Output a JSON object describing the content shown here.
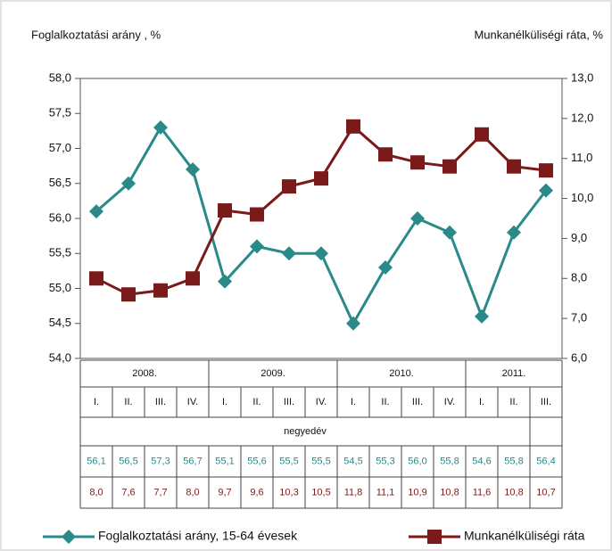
{
  "chart_data": {
    "type": "line",
    "y_title": "Foglalkoztatási arány , %",
    "y2_title": "Munkanélküliségi ráta, %",
    "categories": [
      "I.",
      "II.",
      "III.",
      "IV.",
      "I.",
      "II.",
      "III.",
      "IV.",
      "I.",
      "II.",
      "III.",
      "IV.",
      "I.",
      "II.",
      "III."
    ],
    "groups": [
      {
        "label": "2008.",
        "span": 4
      },
      {
        "label": "2009.",
        "span": 4
      },
      {
        "label": "2010.",
        "span": 4
      },
      {
        "label": "2011.",
        "span": 3
      }
    ],
    "x_label": "negyedév",
    "series": [
      {
        "name": "Foglalkoztatási arány, 15-64 évesek",
        "color": "#2a8a8a",
        "marker": "diamond",
        "values": [
          56.1,
          56.5,
          57.3,
          56.7,
          55.1,
          55.6,
          55.5,
          55.5,
          54.5,
          55.3,
          56.0,
          55.8,
          54.6,
          55.8,
          56.4
        ],
        "value_labels": [
          "56,1",
          "56,5",
          "57,3",
          "56,7",
          "55,1",
          "55,6",
          "55,5",
          "55,5",
          "54,5",
          "55,3",
          "56,0",
          "55,8",
          "54,6",
          "55,8",
          "56,4"
        ]
      },
      {
        "name": "Munkanélküliségi ráta",
        "color": "#7b1a1a",
        "marker": "square",
        "axis": "y2",
        "values": [
          8.0,
          7.6,
          7.7,
          8.0,
          9.7,
          9.6,
          10.3,
          10.5,
          11.8,
          11.1,
          10.9,
          10.8,
          11.6,
          10.8,
          10.7
        ],
        "value_labels": [
          "8,0",
          "7,6",
          "7,7",
          "8,0",
          "9,7",
          "9,6",
          "10,3",
          "10,5",
          "11,8",
          "11,1",
          "10,9",
          "10,8",
          "11,6",
          "10,8",
          "10,7"
        ]
      }
    ],
    "ylim": [
      54.0,
      58.0
    ],
    "yticks": [
      {
        "value": 54.0,
        "label": "54,0"
      },
      {
        "value": 54.5,
        "label": "54,5"
      },
      {
        "value": 55.0,
        "label": "55,0"
      },
      {
        "value": 55.5,
        "label": "55,5"
      },
      {
        "value": 56.0,
        "label": "56,0"
      },
      {
        "value": 56.5,
        "label": "56,5"
      },
      {
        "value": 57.0,
        "label": "57,0"
      },
      {
        "value": 57.5,
        "label": "57,5"
      },
      {
        "value": 58.0,
        "label": "58,0"
      }
    ],
    "y2lim": [
      6.0,
      13.0
    ],
    "y2ticks": [
      {
        "value": 6.0,
        "label": "6,0"
      },
      {
        "value": 7.0,
        "label": "7,0"
      },
      {
        "value": 8.0,
        "label": "8,0"
      },
      {
        "value": 9.0,
        "label": "9,0"
      },
      {
        "value": 10.0,
        "label": "10,0"
      },
      {
        "value": 11.0,
        "label": "11,0"
      },
      {
        "value": 12.0,
        "label": "12,0"
      },
      {
        "value": 13.0,
        "label": "13,0"
      }
    ],
    "legend": "bottom"
  }
}
